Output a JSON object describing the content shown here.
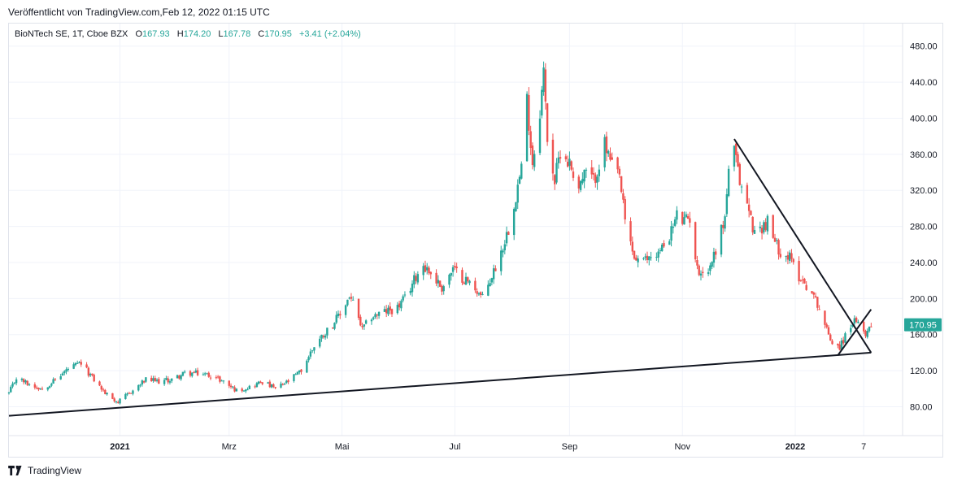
{
  "header": {
    "published": "Veröffentlicht von TradingView.com,Feb 12, 2022 01:15 UTC"
  },
  "legend": {
    "symbol": "BioNTech SE, 1T, Cboe BZX",
    "open_label": "O",
    "open": "167.93",
    "high_label": "H",
    "high": "174.20",
    "low_label": "L",
    "low": "167.78",
    "close_label": "C",
    "close": "170.95",
    "change": "+3.41 (+2.04%)"
  },
  "footer": {
    "brand": "TradingView"
  },
  "colors": {
    "up": "#26a69a",
    "down": "#ef5350",
    "trendline": "#131722",
    "grid": "#f0f3fa"
  },
  "chart_data": {
    "type": "candlestick",
    "y_ticks": [
      "80.00",
      "120.00",
      "160.00",
      "200.00",
      "240.00",
      "280.00",
      "320.00",
      "360.00",
      "400.00",
      "440.00",
      "480.00"
    ],
    "x_ticks": [
      {
        "label": "2021",
        "date": "2021-01-01",
        "bold": true
      },
      {
        "label": "Mrz",
        "date": "2021-03-01",
        "bold": false
      },
      {
        "label": "Mai",
        "date": "2021-05-01",
        "bold": false
      },
      {
        "label": "Jul",
        "date": "2021-07-01",
        "bold": false
      },
      {
        "label": "Sep",
        "date": "2021-09-01",
        "bold": false
      },
      {
        "label": "Nov",
        "date": "2021-11-01",
        "bold": false
      },
      {
        "label": "2022",
        "date": "2022-01-01",
        "bold": true
      },
      {
        "label": "7",
        "date": "2022-02-07",
        "bold": false
      }
    ],
    "ylim": [
      48,
      505
    ],
    "xlim": [
      "2020-11-02",
      "2022-02-28"
    ],
    "last_price": "170.95",
    "price_path": [
      [
        "2020-11-02",
        95
      ],
      [
        "2020-11-06",
        112
      ],
      [
        "2020-11-13",
        105
      ],
      [
        "2020-11-20",
        100
      ],
      [
        "2020-11-27",
        110
      ],
      [
        "2020-12-04",
        122
      ],
      [
        "2020-12-11",
        128
      ],
      [
        "2020-12-18",
        110
      ],
      [
        "2020-12-24",
        95
      ],
      [
        "2020-12-31",
        85
      ],
      [
        "2021-01-08",
        98
      ],
      [
        "2021-01-15",
        110
      ],
      [
        "2021-01-22",
        108
      ],
      [
        "2021-01-29",
        110
      ],
      [
        "2021-02-05",
        117
      ],
      [
        "2021-02-12",
        117
      ],
      [
        "2021-02-19",
        115
      ],
      [
        "2021-02-26",
        108
      ],
      [
        "2021-03-05",
        98
      ],
      [
        "2021-03-12",
        102
      ],
      [
        "2021-03-19",
        108
      ],
      [
        "2021-03-26",
        100
      ],
      [
        "2021-04-02",
        108
      ],
      [
        "2021-04-09",
        120
      ],
      [
        "2021-04-16",
        148
      ],
      [
        "2021-04-23",
        165
      ],
      [
        "2021-04-30",
        182
      ],
      [
        "2021-05-05",
        203
      ],
      [
        "2021-05-07",
        195
      ],
      [
        "2021-05-12",
        165
      ],
      [
        "2021-05-17",
        180
      ],
      [
        "2021-05-24",
        185
      ],
      [
        "2021-05-31",
        190
      ],
      [
        "2021-06-04",
        200
      ],
      [
        "2021-06-10",
        225
      ],
      [
        "2021-06-14",
        238
      ],
      [
        "2021-06-18",
        228
      ],
      [
        "2021-06-24",
        212
      ],
      [
        "2021-06-30",
        232
      ],
      [
        "2021-07-06",
        222
      ],
      [
        "2021-07-12",
        212
      ],
      [
        "2021-07-16",
        200
      ],
      [
        "2021-07-22",
        230
      ],
      [
        "2021-07-26",
        252
      ],
      [
        "2021-07-30",
        278
      ],
      [
        "2021-08-04",
        325
      ],
      [
        "2021-08-06",
        345
      ],
      [
        "2021-08-09",
        420
      ],
      [
        "2021-08-12",
        350
      ],
      [
        "2021-08-16",
        410
      ],
      [
        "2021-08-18",
        450
      ],
      [
        "2021-08-20",
        380
      ],
      [
        "2021-08-24",
        330
      ],
      [
        "2021-08-27",
        365
      ],
      [
        "2021-09-01",
        350
      ],
      [
        "2021-09-06",
        325
      ],
      [
        "2021-09-10",
        340
      ],
      [
        "2021-09-14",
        330
      ],
      [
        "2021-09-17",
        350
      ],
      [
        "2021-09-20",
        370
      ],
      [
        "2021-09-24",
        345
      ],
      [
        "2021-09-28",
        335
      ],
      [
        "2021-10-01",
        285
      ],
      [
        "2021-10-06",
        245
      ],
      [
        "2021-10-11",
        240
      ],
      [
        "2021-10-15",
        248
      ],
      [
        "2021-10-20",
        252
      ],
      [
        "2021-10-26",
        275
      ],
      [
        "2021-10-29",
        292
      ],
      [
        "2021-11-02",
        285
      ],
      [
        "2021-11-05",
        290
      ],
      [
        "2021-11-09",
        232
      ],
      [
        "2021-11-15",
        230
      ],
      [
        "2021-11-19",
        255
      ],
      [
        "2021-11-24",
        290
      ],
      [
        "2021-11-26",
        345
      ],
      [
        "2021-11-29",
        362
      ],
      [
        "2021-12-02",
        330
      ],
      [
        "2021-12-06",
        305
      ],
      [
        "2021-12-10",
        272
      ],
      [
        "2021-12-14",
        280
      ],
      [
        "2021-12-17",
        285
      ],
      [
        "2021-12-21",
        262
      ],
      [
        "2021-12-24",
        253
      ],
      [
        "2021-12-29",
        245
      ],
      [
        "2022-01-03",
        225
      ],
      [
        "2022-01-06",
        218
      ],
      [
        "2022-01-10",
        205
      ],
      [
        "2022-01-13",
        195
      ],
      [
        "2022-01-18",
        165
      ],
      [
        "2022-01-21",
        152
      ],
      [
        "2022-01-25",
        147
      ],
      [
        "2022-01-28",
        158
      ],
      [
        "2022-02-01",
        175
      ],
      [
        "2022-02-04",
        170
      ],
      [
        "2022-02-08",
        162
      ],
      [
        "2022-02-11",
        171
      ]
    ],
    "trendlines": [
      {
        "from": [
          "2020-11-02",
          70
        ],
        "to": [
          "2022-02-11",
          140
        ]
      },
      {
        "from": [
          "2021-11-29",
          377
        ],
        "to": [
          "2022-02-11",
          140
        ]
      },
      {
        "from": [
          "2022-01-24",
          137
        ],
        "to": [
          "2022-02-11",
          188
        ]
      }
    ]
  }
}
